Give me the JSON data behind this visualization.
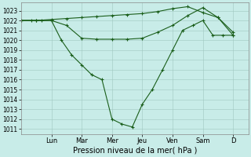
{
  "title": "",
  "xlabel": "Pression niveau de la mer( hPa )",
  "bg_color": "#c8ece8",
  "grid_color": "#a0c8c0",
  "line_color": "#1a5e1a",
  "ylim": [
    1010.5,
    1023.8
  ],
  "yticks": [
    1011,
    1012,
    1013,
    1014,
    1015,
    1016,
    1017,
    1018,
    1019,
    1020,
    1021,
    1022,
    1023
  ],
  "day_labels": [
    "Lun",
    "Mar",
    "Mer",
    "Jeu",
    "Ven",
    "Sam",
    "D"
  ],
  "day_positions": [
    1,
    2,
    3,
    4,
    5,
    6,
    7
  ],
  "xlim": [
    0,
    7.5
  ],
  "line1_x": [
    0.0,
    0.33,
    0.67,
    1.0,
    1.33,
    1.67,
    2.0,
    2.33,
    2.67,
    3.0,
    3.33,
    3.67,
    4.0,
    4.33,
    4.67,
    5.0,
    5.33,
    5.67,
    6.0,
    6.33,
    6.67,
    7.0
  ],
  "line1_y": [
    1022,
    1022,
    1022,
    1022,
    1020,
    1018.5,
    1017.5,
    1016.5,
    1016,
    1012,
    1011.5,
    1011.2,
    1013.5,
    1015,
    1017,
    1019,
    1021,
    1021.5,
    1022,
    1020.5,
    1020.5,
    1020.5
  ],
  "line2_x": [
    0.0,
    0.5,
    1.0,
    1.5,
    2.0,
    2.5,
    3.0,
    3.5,
    4.0,
    4.5,
    5.0,
    5.5,
    6.0,
    6.5,
    7.0
  ],
  "line2_y": [
    1022,
    1022,
    1022,
    1021.5,
    1020.2,
    1020.1,
    1020.1,
    1020.1,
    1020.2,
    1020.8,
    1021.5,
    1022.5,
    1023.3,
    1022.3,
    1020.5
  ],
  "line3_x": [
    0.0,
    0.5,
    1.0,
    1.5,
    2.0,
    2.5,
    3.0,
    3.5,
    4.0,
    4.5,
    5.0,
    5.5,
    6.0,
    6.5,
    7.0
  ],
  "line3_y": [
    1022,
    1022,
    1022.1,
    1022.2,
    1022.3,
    1022.4,
    1022.5,
    1022.6,
    1022.7,
    1022.9,
    1023.2,
    1023.4,
    1022.8,
    1022.3,
    1020.8
  ],
  "xlabel_fontsize": 7,
  "ytick_fontsize": 5.5,
  "xtick_fontsize": 6
}
